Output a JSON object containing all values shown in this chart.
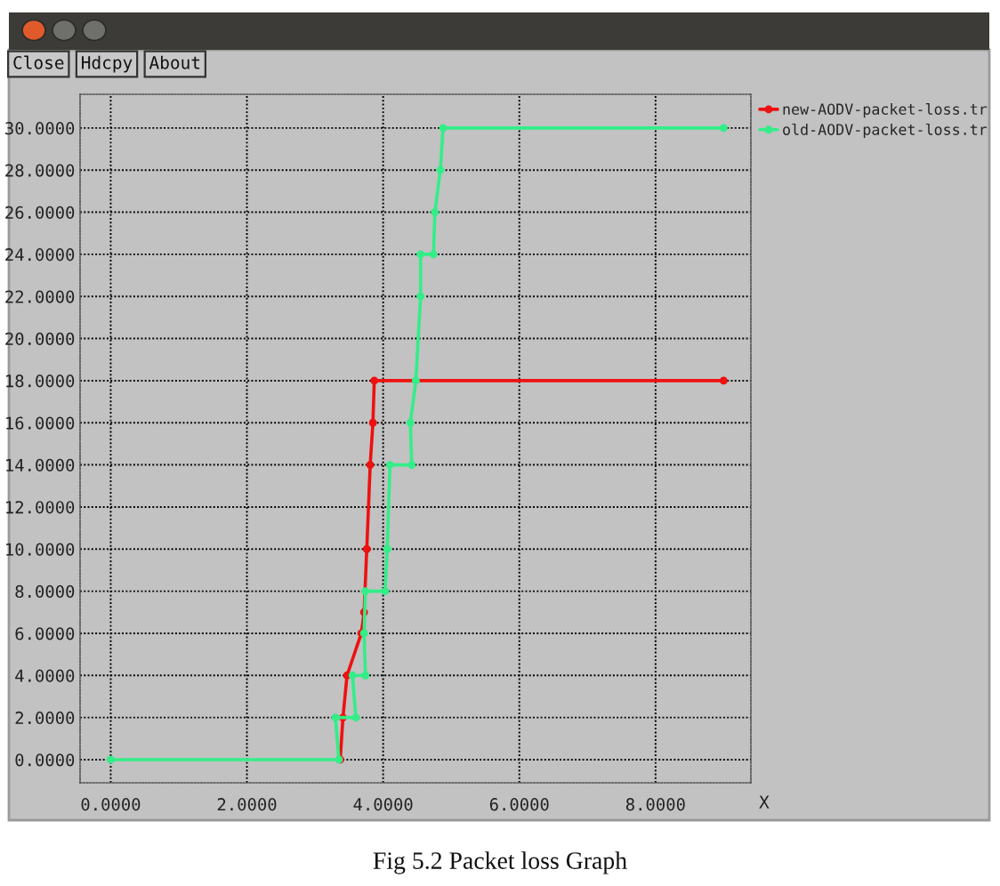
{
  "chart_data": {
    "type": "line",
    "title": "Fig 5.2 Packet loss Graph",
    "xlabel": "X",
    "annotations": [
      "Close",
      "Hdcpy",
      "About"
    ],
    "series": [
      {
        "name": "new-AODV-packet-loss.tr",
        "color": "#ee1111",
        "x": [
          3.37,
          3.41,
          3.47,
          3.68,
          3.72,
          3.76,
          3.81,
          3.85,
          3.87,
          9.0
        ],
        "values": [
          0,
          2,
          4,
          6,
          7,
          10,
          14,
          16,
          18,
          18
        ]
      },
      {
        "name": "old-AODV-packet-loss.tr",
        "color": "#33ee88",
        "x": [
          0,
          3.35,
          3.3,
          3.6,
          3.55,
          3.74,
          3.72,
          3.74,
          4.03,
          4.06,
          4.1,
          4.42,
          4.4,
          4.48,
          4.55,
          4.55,
          4.74,
          4.76,
          4.84,
          4.88,
          9.0
        ],
        "values": [
          0,
          0,
          2,
          2,
          4,
          4,
          6,
          8,
          8,
          10,
          14,
          14,
          16,
          18,
          22,
          24,
          24,
          26,
          28,
          30,
          30
        ]
      }
    ],
    "xlim": [
      -0.45,
      9.4
    ],
    "ylim": [
      -1.1,
      31.6
    ],
    "xticks": [
      {
        "value": 0,
        "label": "0.0000"
      },
      {
        "value": 2,
        "label": "2.0000"
      },
      {
        "value": 4,
        "label": "4.0000"
      },
      {
        "value": 6,
        "label": "6.0000"
      },
      {
        "value": 8,
        "label": "8.0000"
      }
    ],
    "yticks": [
      {
        "value": 0,
        "label": "0.0000"
      },
      {
        "value": 2,
        "label": "2.0000"
      },
      {
        "value": 4,
        "label": "4.0000"
      },
      {
        "value": 6,
        "label": "6.0000"
      },
      {
        "value": 8,
        "label": "8.0000"
      },
      {
        "value": 10,
        "label": "10.0000"
      },
      {
        "value": 12,
        "label": "12.0000"
      },
      {
        "value": 14,
        "label": "14.0000"
      },
      {
        "value": 16,
        "label": "16.0000"
      },
      {
        "value": 18,
        "label": "18.0000"
      },
      {
        "value": 20,
        "label": "20.0000"
      },
      {
        "value": 22,
        "label": "22.0000"
      },
      {
        "value": 24,
        "label": "24.0000"
      },
      {
        "value": 26,
        "label": "26.0000"
      },
      {
        "value": 28,
        "label": "28.0000"
      },
      {
        "value": 30,
        "label": "30.0000"
      }
    ],
    "grid": true,
    "legend": "top right",
    "marker": "circle",
    "line_style": "solid"
  }
}
